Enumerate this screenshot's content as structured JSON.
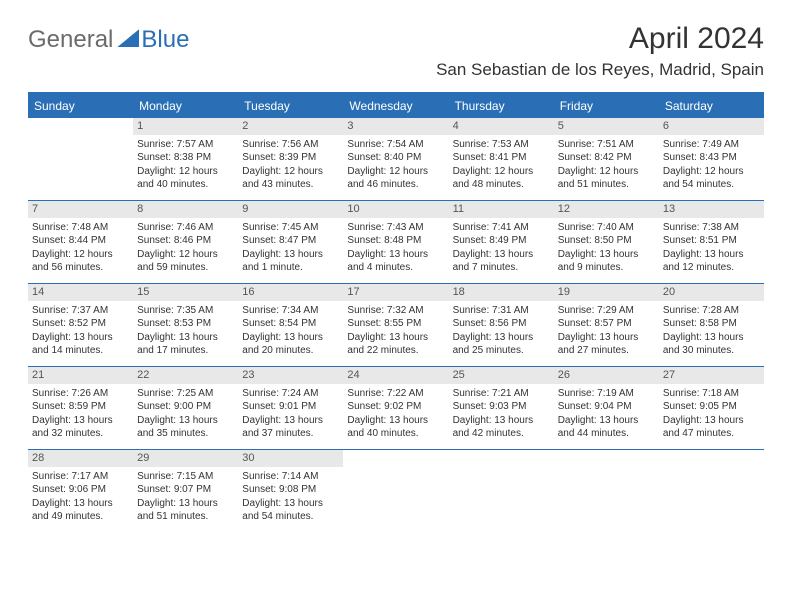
{
  "brand": {
    "left": "General",
    "right": "Blue"
  },
  "title": "April 2024",
  "location": "San Sebastian de los Reyes, Madrid, Spain",
  "colors": {
    "header_bg": "#2a6fb5",
    "daynum_bg": "#e8e8e8",
    "text": "#333333",
    "page_bg": "#ffffff"
  },
  "day_names": [
    "Sunday",
    "Monday",
    "Tuesday",
    "Wednesday",
    "Thursday",
    "Friday",
    "Saturday"
  ],
  "weeks": [
    [
      {
        "n": ""
      },
      {
        "n": "1",
        "sr": "Sunrise: 7:57 AM",
        "ss": "Sunset: 8:38 PM",
        "d1": "Daylight: 12 hours",
        "d2": "and 40 minutes."
      },
      {
        "n": "2",
        "sr": "Sunrise: 7:56 AM",
        "ss": "Sunset: 8:39 PM",
        "d1": "Daylight: 12 hours",
        "d2": "and 43 minutes."
      },
      {
        "n": "3",
        "sr": "Sunrise: 7:54 AM",
        "ss": "Sunset: 8:40 PM",
        "d1": "Daylight: 12 hours",
        "d2": "and 46 minutes."
      },
      {
        "n": "4",
        "sr": "Sunrise: 7:53 AM",
        "ss": "Sunset: 8:41 PM",
        "d1": "Daylight: 12 hours",
        "d2": "and 48 minutes."
      },
      {
        "n": "5",
        "sr": "Sunrise: 7:51 AM",
        "ss": "Sunset: 8:42 PM",
        "d1": "Daylight: 12 hours",
        "d2": "and 51 minutes."
      },
      {
        "n": "6",
        "sr": "Sunrise: 7:49 AM",
        "ss": "Sunset: 8:43 PM",
        "d1": "Daylight: 12 hours",
        "d2": "and 54 minutes."
      }
    ],
    [
      {
        "n": "7",
        "sr": "Sunrise: 7:48 AM",
        "ss": "Sunset: 8:44 PM",
        "d1": "Daylight: 12 hours",
        "d2": "and 56 minutes."
      },
      {
        "n": "8",
        "sr": "Sunrise: 7:46 AM",
        "ss": "Sunset: 8:46 PM",
        "d1": "Daylight: 12 hours",
        "d2": "and 59 minutes."
      },
      {
        "n": "9",
        "sr": "Sunrise: 7:45 AM",
        "ss": "Sunset: 8:47 PM",
        "d1": "Daylight: 13 hours",
        "d2": "and 1 minute."
      },
      {
        "n": "10",
        "sr": "Sunrise: 7:43 AM",
        "ss": "Sunset: 8:48 PM",
        "d1": "Daylight: 13 hours",
        "d2": "and 4 minutes."
      },
      {
        "n": "11",
        "sr": "Sunrise: 7:41 AM",
        "ss": "Sunset: 8:49 PM",
        "d1": "Daylight: 13 hours",
        "d2": "and 7 minutes."
      },
      {
        "n": "12",
        "sr": "Sunrise: 7:40 AM",
        "ss": "Sunset: 8:50 PM",
        "d1": "Daylight: 13 hours",
        "d2": "and 9 minutes."
      },
      {
        "n": "13",
        "sr": "Sunrise: 7:38 AM",
        "ss": "Sunset: 8:51 PM",
        "d1": "Daylight: 13 hours",
        "d2": "and 12 minutes."
      }
    ],
    [
      {
        "n": "14",
        "sr": "Sunrise: 7:37 AM",
        "ss": "Sunset: 8:52 PM",
        "d1": "Daylight: 13 hours",
        "d2": "and 14 minutes."
      },
      {
        "n": "15",
        "sr": "Sunrise: 7:35 AM",
        "ss": "Sunset: 8:53 PM",
        "d1": "Daylight: 13 hours",
        "d2": "and 17 minutes."
      },
      {
        "n": "16",
        "sr": "Sunrise: 7:34 AM",
        "ss": "Sunset: 8:54 PM",
        "d1": "Daylight: 13 hours",
        "d2": "and 20 minutes."
      },
      {
        "n": "17",
        "sr": "Sunrise: 7:32 AM",
        "ss": "Sunset: 8:55 PM",
        "d1": "Daylight: 13 hours",
        "d2": "and 22 minutes."
      },
      {
        "n": "18",
        "sr": "Sunrise: 7:31 AM",
        "ss": "Sunset: 8:56 PM",
        "d1": "Daylight: 13 hours",
        "d2": "and 25 minutes."
      },
      {
        "n": "19",
        "sr": "Sunrise: 7:29 AM",
        "ss": "Sunset: 8:57 PM",
        "d1": "Daylight: 13 hours",
        "d2": "and 27 minutes."
      },
      {
        "n": "20",
        "sr": "Sunrise: 7:28 AM",
        "ss": "Sunset: 8:58 PM",
        "d1": "Daylight: 13 hours",
        "d2": "and 30 minutes."
      }
    ],
    [
      {
        "n": "21",
        "sr": "Sunrise: 7:26 AM",
        "ss": "Sunset: 8:59 PM",
        "d1": "Daylight: 13 hours",
        "d2": "and 32 minutes."
      },
      {
        "n": "22",
        "sr": "Sunrise: 7:25 AM",
        "ss": "Sunset: 9:00 PM",
        "d1": "Daylight: 13 hours",
        "d2": "and 35 minutes."
      },
      {
        "n": "23",
        "sr": "Sunrise: 7:24 AM",
        "ss": "Sunset: 9:01 PM",
        "d1": "Daylight: 13 hours",
        "d2": "and 37 minutes."
      },
      {
        "n": "24",
        "sr": "Sunrise: 7:22 AM",
        "ss": "Sunset: 9:02 PM",
        "d1": "Daylight: 13 hours",
        "d2": "and 40 minutes."
      },
      {
        "n": "25",
        "sr": "Sunrise: 7:21 AM",
        "ss": "Sunset: 9:03 PM",
        "d1": "Daylight: 13 hours",
        "d2": "and 42 minutes."
      },
      {
        "n": "26",
        "sr": "Sunrise: 7:19 AM",
        "ss": "Sunset: 9:04 PM",
        "d1": "Daylight: 13 hours",
        "d2": "and 44 minutes."
      },
      {
        "n": "27",
        "sr": "Sunrise: 7:18 AM",
        "ss": "Sunset: 9:05 PM",
        "d1": "Daylight: 13 hours",
        "d2": "and 47 minutes."
      }
    ],
    [
      {
        "n": "28",
        "sr": "Sunrise: 7:17 AM",
        "ss": "Sunset: 9:06 PM",
        "d1": "Daylight: 13 hours",
        "d2": "and 49 minutes."
      },
      {
        "n": "29",
        "sr": "Sunrise: 7:15 AM",
        "ss": "Sunset: 9:07 PM",
        "d1": "Daylight: 13 hours",
        "d2": "and 51 minutes."
      },
      {
        "n": "30",
        "sr": "Sunrise: 7:14 AM",
        "ss": "Sunset: 9:08 PM",
        "d1": "Daylight: 13 hours",
        "d2": "and 54 minutes."
      },
      {
        "n": ""
      },
      {
        "n": ""
      },
      {
        "n": ""
      },
      {
        "n": ""
      }
    ]
  ]
}
